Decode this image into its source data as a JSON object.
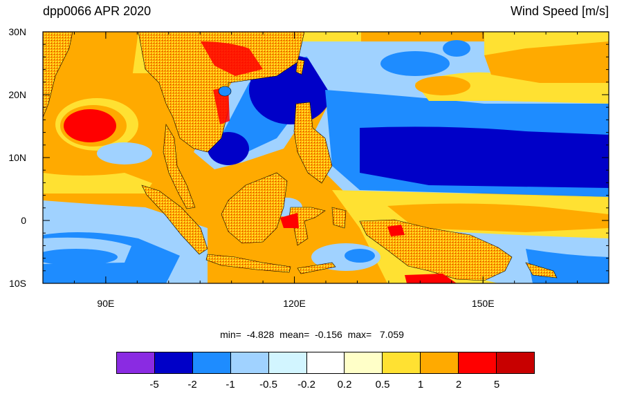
{
  "title": "dpp0066 APR 2020",
  "variable": "Wind Speed [m/s]",
  "stats": {
    "min_label": "min=",
    "min": "-4.828",
    "mean_label": "mean=",
    "mean": "-0.156",
    "max_label": "max=",
    "max": "7.059"
  },
  "map": {
    "lon_range": [
      80,
      170
    ],
    "lat_range": [
      -10,
      30
    ],
    "lat_ticks": [
      {
        "value": 30,
        "label": "30N"
      },
      {
        "value": 20,
        "label": "20N"
      },
      {
        "value": 10,
        "label": "10N"
      },
      {
        "value": 0,
        "label": "0"
      },
      {
        "value": -10,
        "label": "10S"
      }
    ],
    "lon_ticks": [
      {
        "value": 90,
        "label": "90E"
      },
      {
        "value": 120,
        "label": "120E"
      },
      {
        "value": 150,
        "label": "150E"
      }
    ]
  },
  "colorbar": {
    "colors": [
      "#8a2be2",
      "#0000c8",
      "#1e8cff",
      "#a0d2ff",
      "#d2f5ff",
      "#ffffff",
      "#ffffc8",
      "#ffe132",
      "#ffaa00",
      "#ff0000",
      "#c80000"
    ],
    "labels": [
      "-5",
      "-2",
      "-1",
      "-0.5",
      "-0.2",
      "0.2",
      "0.5",
      "1",
      "2",
      "5"
    ]
  }
}
